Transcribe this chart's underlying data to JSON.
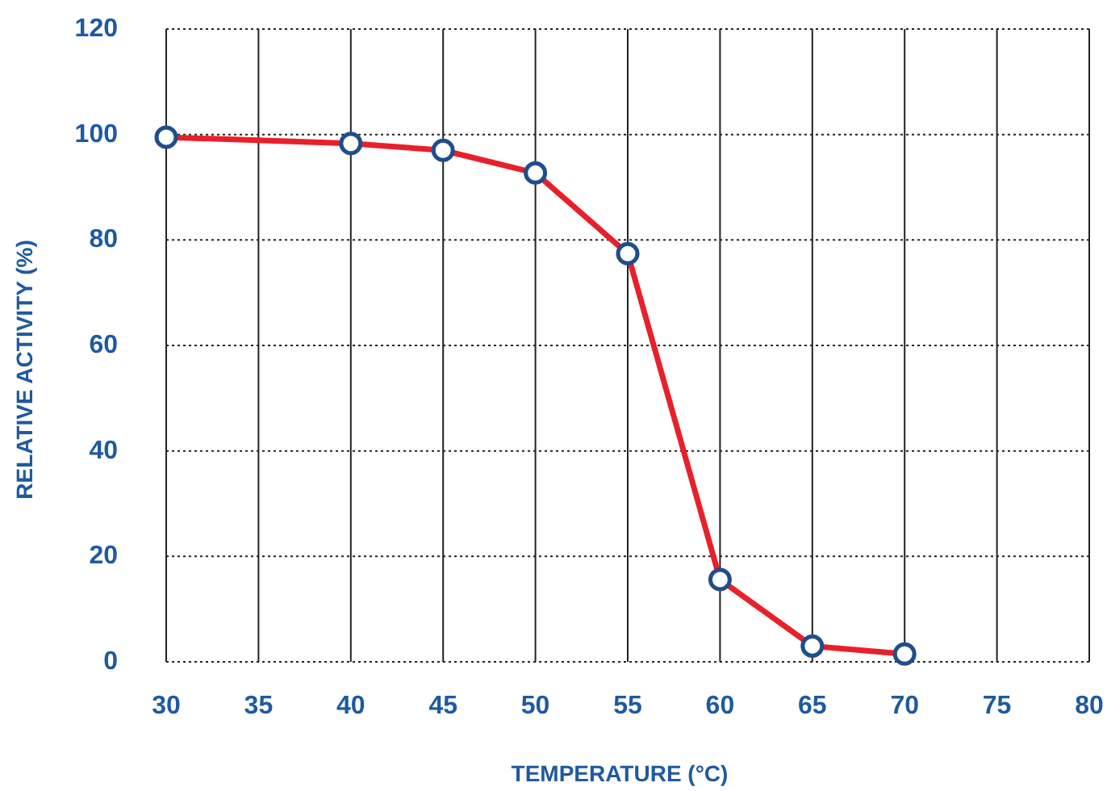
{
  "chart_data": {
    "type": "line",
    "xlabel": "TEMPERATURE (°C)",
    "ylabel": "RELATIVE ACTIVITY (%)",
    "x": [
      30,
      40,
      45,
      50,
      55,
      60,
      65,
      70
    ],
    "series": [
      {
        "color": "#e8202a",
        "values": [
          99.5,
          98.3,
          97,
          92.7,
          77.4,
          15.6,
          3,
          1.5
        ]
      }
    ],
    "xlim": [
      30,
      80
    ],
    "xticks": [
      30,
      35,
      40,
      45,
      50,
      55,
      60,
      65,
      70,
      75,
      80
    ],
    "ylim": [
      0,
      120
    ],
    "yticks": [
      0,
      20,
      40,
      60,
      80,
      100,
      120
    ],
    "grid": true,
    "marker": "circle",
    "line_style": "solid"
  }
}
